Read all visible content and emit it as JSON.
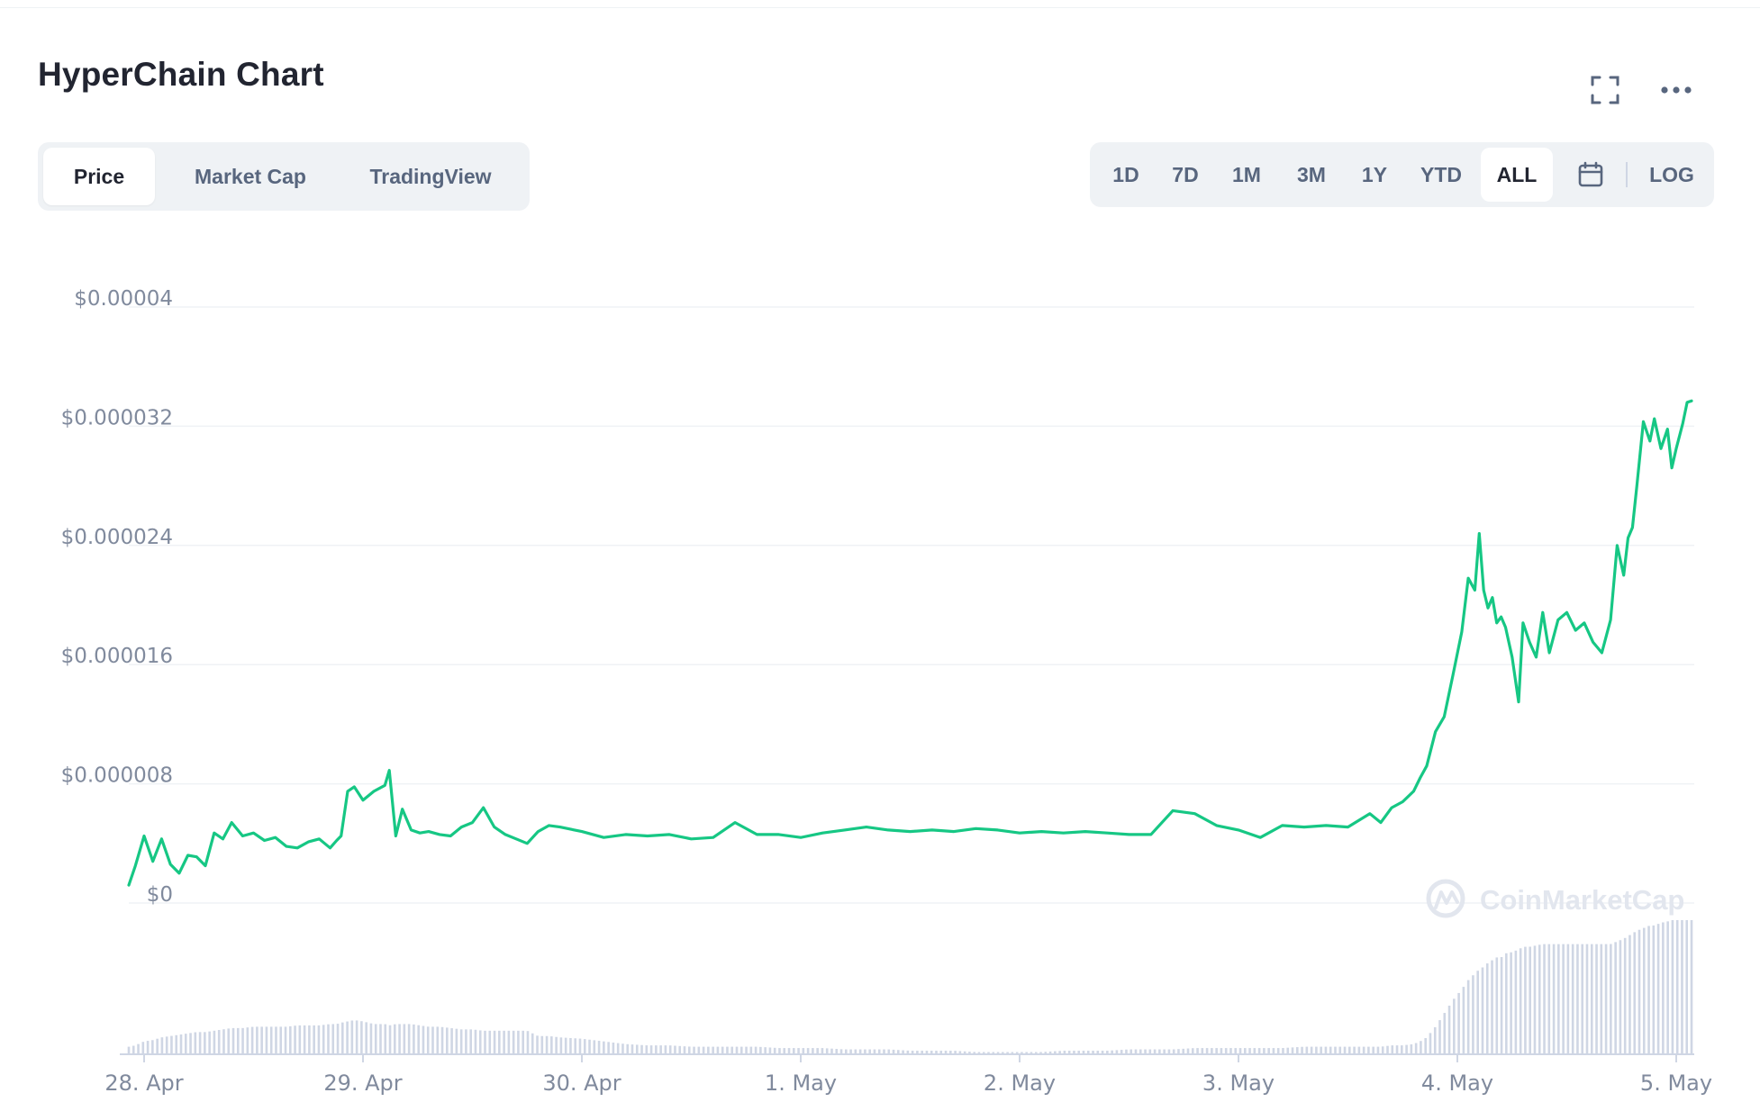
{
  "header": {
    "title": "HyperChain Chart",
    "fullscreen_icon": "fullscreen-icon",
    "more_icon": "more-horizontal-icon"
  },
  "tabs": [
    {
      "label": "Price",
      "active": true
    },
    {
      "label": "Market Cap",
      "active": false
    },
    {
      "label": "TradingView",
      "active": false
    }
  ],
  "ranges": [
    {
      "label": "1D",
      "active": false
    },
    {
      "label": "7D",
      "active": false
    },
    {
      "label": "1M",
      "active": false
    },
    {
      "label": "3M",
      "active": false
    },
    {
      "label": "1Y",
      "active": false
    },
    {
      "label": "YTD",
      "active": false
    },
    {
      "label": "ALL",
      "active": true
    }
  ],
  "calendar_icon": "calendar-icon",
  "log_label": "LOG",
  "watermark": "CoinMarketCap",
  "colors": {
    "line": "#16c784",
    "volume": "#cfd6e4",
    "grid": "#eff2f5",
    "axis_text": "#808a9d"
  },
  "chart_data": {
    "type": "line",
    "ylim": [
      0,
      4e-05
    ],
    "y_ticks": [
      "$0",
      "$0.000008",
      "$0.000016",
      "$0.000024",
      "$0.000032",
      "$0.00004"
    ],
    "y_tick_values": [
      0,
      8e-06,
      1.6e-05,
      2.4e-05,
      3.2e-05,
      4e-05
    ],
    "x_ticks": [
      "28. Apr",
      "29. Apr",
      "30. Apr",
      "1. May",
      "2. May",
      "3. May",
      "4. May",
      "5. May"
    ],
    "xlim": [
      -0.07,
      7.07
    ],
    "grid": true,
    "legend": "none",
    "series": [
      {
        "x": [
          -0.07,
          -0.04,
          0.0,
          0.04,
          0.08,
          0.12,
          0.16,
          0.2,
          0.24,
          0.28,
          0.32,
          0.36,
          0.4,
          0.45,
          0.5,
          0.55,
          0.6,
          0.65,
          0.7,
          0.75,
          0.8,
          0.85,
          0.88,
          0.9,
          0.93,
          0.96,
          1.0,
          1.05,
          1.1,
          1.12,
          1.15,
          1.18,
          1.22,
          1.26,
          1.3,
          1.35,
          1.4,
          1.45,
          1.5,
          1.55,
          1.6,
          1.65,
          1.7,
          1.75,
          1.8,
          1.85,
          1.9,
          2.0,
          2.1,
          2.2,
          2.3,
          2.4,
          2.5,
          2.6,
          2.7,
          2.8,
          2.9,
          3.0,
          3.1,
          3.2,
          3.3,
          3.4,
          3.5,
          3.6,
          3.7,
          3.8,
          3.9,
          4.0,
          4.1,
          4.2,
          4.3,
          4.4,
          4.5,
          4.6,
          4.7,
          4.8,
          4.9,
          5.0,
          5.1,
          5.2,
          5.3,
          5.4,
          5.5,
          5.6,
          5.65,
          5.7,
          5.75,
          5.8,
          5.83,
          5.86,
          5.9,
          5.94,
          5.98,
          6.02,
          6.05,
          6.08,
          6.1,
          6.12,
          6.14,
          6.16,
          6.18,
          6.2,
          6.22,
          6.25,
          6.28,
          6.3,
          6.33,
          6.36,
          6.39,
          6.42,
          6.46,
          6.5,
          6.54,
          6.58,
          6.62,
          6.66,
          6.7,
          6.73,
          6.76,
          6.78,
          6.8,
          6.82,
          6.85,
          6.88,
          6.9,
          6.93,
          6.96,
          6.98,
          7.0,
          7.03,
          7.05,
          7.07
        ],
        "y": [
          1.2e-06,
          2.5e-06,
          4.5e-06,
          2.8e-06,
          4.3e-06,
          2.6e-06,
          2e-06,
          3.2e-06,
          3.1e-06,
          2.5e-06,
          4.7e-06,
          4.3e-06,
          5.4e-06,
          4.5e-06,
          4.7e-06,
          4.2e-06,
          4.4e-06,
          3.8e-06,
          3.7e-06,
          4.1e-06,
          4.3e-06,
          3.7e-06,
          4.2e-06,
          4.5e-06,
          7.5e-06,
          7.8e-06,
          6.9e-06,
          7.5e-06,
          7.9e-06,
          8.9e-06,
          4.5e-06,
          6.3e-06,
          4.9e-06,
          4.7e-06,
          4.8e-06,
          4.6e-06,
          4.5e-06,
          5.1e-06,
          5.4e-06,
          6.4e-06,
          5.1e-06,
          4.6e-06,
          4.3e-06,
          4e-06,
          4.8e-06,
          5.2e-06,
          5.1e-06,
          4.8e-06,
          4.4e-06,
          4.6e-06,
          4.5e-06,
          4.6e-06,
          4.3e-06,
          4.4e-06,
          5.4e-06,
          4.6e-06,
          4.6e-06,
          4.4e-06,
          4.7e-06,
          4.9e-06,
          5.1e-06,
          4.9e-06,
          4.8e-06,
          4.9e-06,
          4.8e-06,
          5e-06,
          4.9e-06,
          4.7e-06,
          4.8e-06,
          4.7e-06,
          4.8e-06,
          4.7e-06,
          4.6e-06,
          4.6e-06,
          6.2e-06,
          6e-06,
          5.2e-06,
          4.9e-06,
          4.4e-06,
          5.2e-06,
          5.1e-06,
          5.2e-06,
          5.1e-06,
          6e-06,
          5.4e-06,
          6.4e-06,
          6.8e-06,
          7.5e-06,
          8.4e-06,
          9.2e-06,
          1.15e-05,
          1.25e-05,
          1.53e-05,
          1.82e-05,
          2.18e-05,
          2.1e-05,
          2.48e-05,
          2.1e-05,
          1.98e-05,
          2.05e-05,
          1.88e-05,
          1.92e-05,
          1.85e-05,
          1.65e-05,
          1.35e-05,
          1.88e-05,
          1.75e-05,
          1.65e-05,
          1.95e-05,
          1.68e-05,
          1.9e-05,
          1.95e-05,
          1.83e-05,
          1.88e-05,
          1.75e-05,
          1.68e-05,
          1.9e-05,
          2.4e-05,
          2.2e-05,
          2.45e-05,
          2.52e-05,
          2.8e-05,
          3.23e-05,
          3.1e-05,
          3.25e-05,
          3.05e-05,
          3.18e-05,
          2.92e-05,
          3.05e-05,
          3.22e-05,
          3.36e-05,
          3.37e-05
        ],
        "volume": [
          0.05,
          0.06,
          0.09,
          0.1,
          0.12,
          0.13,
          0.14,
          0.15,
          0.16,
          0.16,
          0.17,
          0.18,
          0.19,
          0.19,
          0.2,
          0.2,
          0.2,
          0.2,
          0.21,
          0.21,
          0.21,
          0.22,
          0.22,
          0.23,
          0.24,
          0.25,
          0.24,
          0.22,
          0.22,
          0.21,
          0.22,
          0.22,
          0.22,
          0.21,
          0.2,
          0.2,
          0.19,
          0.18,
          0.18,
          0.17,
          0.17,
          0.17,
          0.17,
          0.17,
          0.13,
          0.13,
          0.12,
          0.11,
          0.09,
          0.07,
          0.06,
          0.06,
          0.05,
          0.05,
          0.05,
          0.05,
          0.04,
          0.04,
          0.04,
          0.03,
          0.03,
          0.03,
          0.02,
          0.02,
          0.02,
          0.01,
          0.01,
          0.01,
          0.01,
          0.02,
          0.02,
          0.02,
          0.03,
          0.03,
          0.03,
          0.04,
          0.04,
          0.04,
          0.04,
          0.04,
          0.05,
          0.05,
          0.05,
          0.05,
          0.05,
          0.06,
          0.06,
          0.07,
          0.09,
          0.12,
          0.2,
          0.3,
          0.4,
          0.48,
          0.55,
          0.6,
          0.63,
          0.65,
          0.68,
          0.7,
          0.72,
          0.72,
          0.75,
          0.76,
          0.78,
          0.8,
          0.8,
          0.81,
          0.82,
          0.82,
          0.82,
          0.82,
          0.82,
          0.82,
          0.82,
          0.82,
          0.82,
          0.84,
          0.86,
          0.88,
          0.9,
          0.92,
          0.94,
          0.96,
          0.96,
          0.98,
          0.99,
          1.0,
          1.0,
          1.0,
          1.0,
          1.0
        ]
      }
    ]
  }
}
